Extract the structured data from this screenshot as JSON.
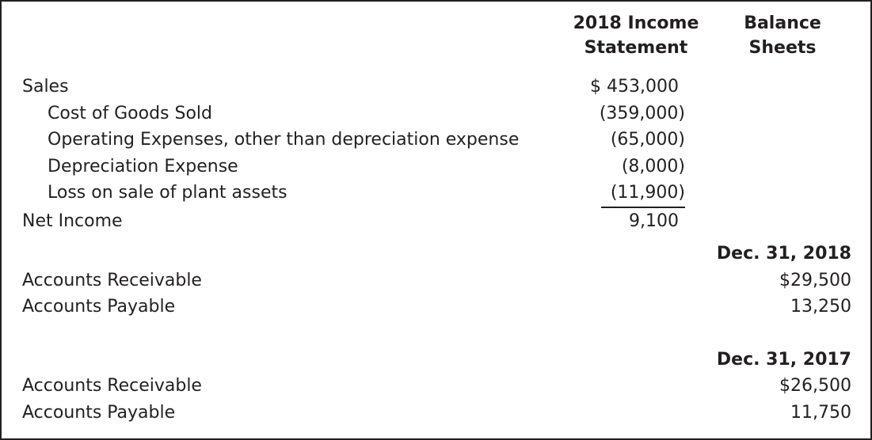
{
  "style": {
    "text_color": "#231f20",
    "border_color": "#231f20",
    "background_color": "#ffffff"
  },
  "headers": {
    "income_statement": "2018 Income Statement",
    "balance_sheets": "Balance Sheets"
  },
  "income_statement": {
    "rows": [
      {
        "label": "Sales",
        "indent": false,
        "amount": "$ 453,000"
      },
      {
        "label": "Cost of Goods Sold",
        "indent": true,
        "amount": "(359,000)"
      },
      {
        "label": "Operating Expenses, other than depreciation expense",
        "indent": true,
        "amount": "(65,000)"
      },
      {
        "label": "Depreciation Expense",
        "indent": true,
        "amount": "(8,000)"
      },
      {
        "label": "Loss on sale of plant assets",
        "indent": true,
        "amount": "(11,900)",
        "underlined": true
      },
      {
        "label": "Net Income",
        "indent": false,
        "amount": "9,100"
      }
    ]
  },
  "balance_sheets": {
    "sections": [
      {
        "date": "Dec. 31, 2018",
        "rows": [
          {
            "label": "Accounts Receivable",
            "amount": "$29,500"
          },
          {
            "label": "Accounts Payable",
            "amount": "13,250"
          }
        ]
      },
      {
        "date": "Dec. 31, 2017",
        "rows": [
          {
            "label": "Accounts Receivable",
            "amount": "$26,500"
          },
          {
            "label": "Accounts Payable",
            "amount": "11,750"
          }
        ]
      }
    ]
  }
}
